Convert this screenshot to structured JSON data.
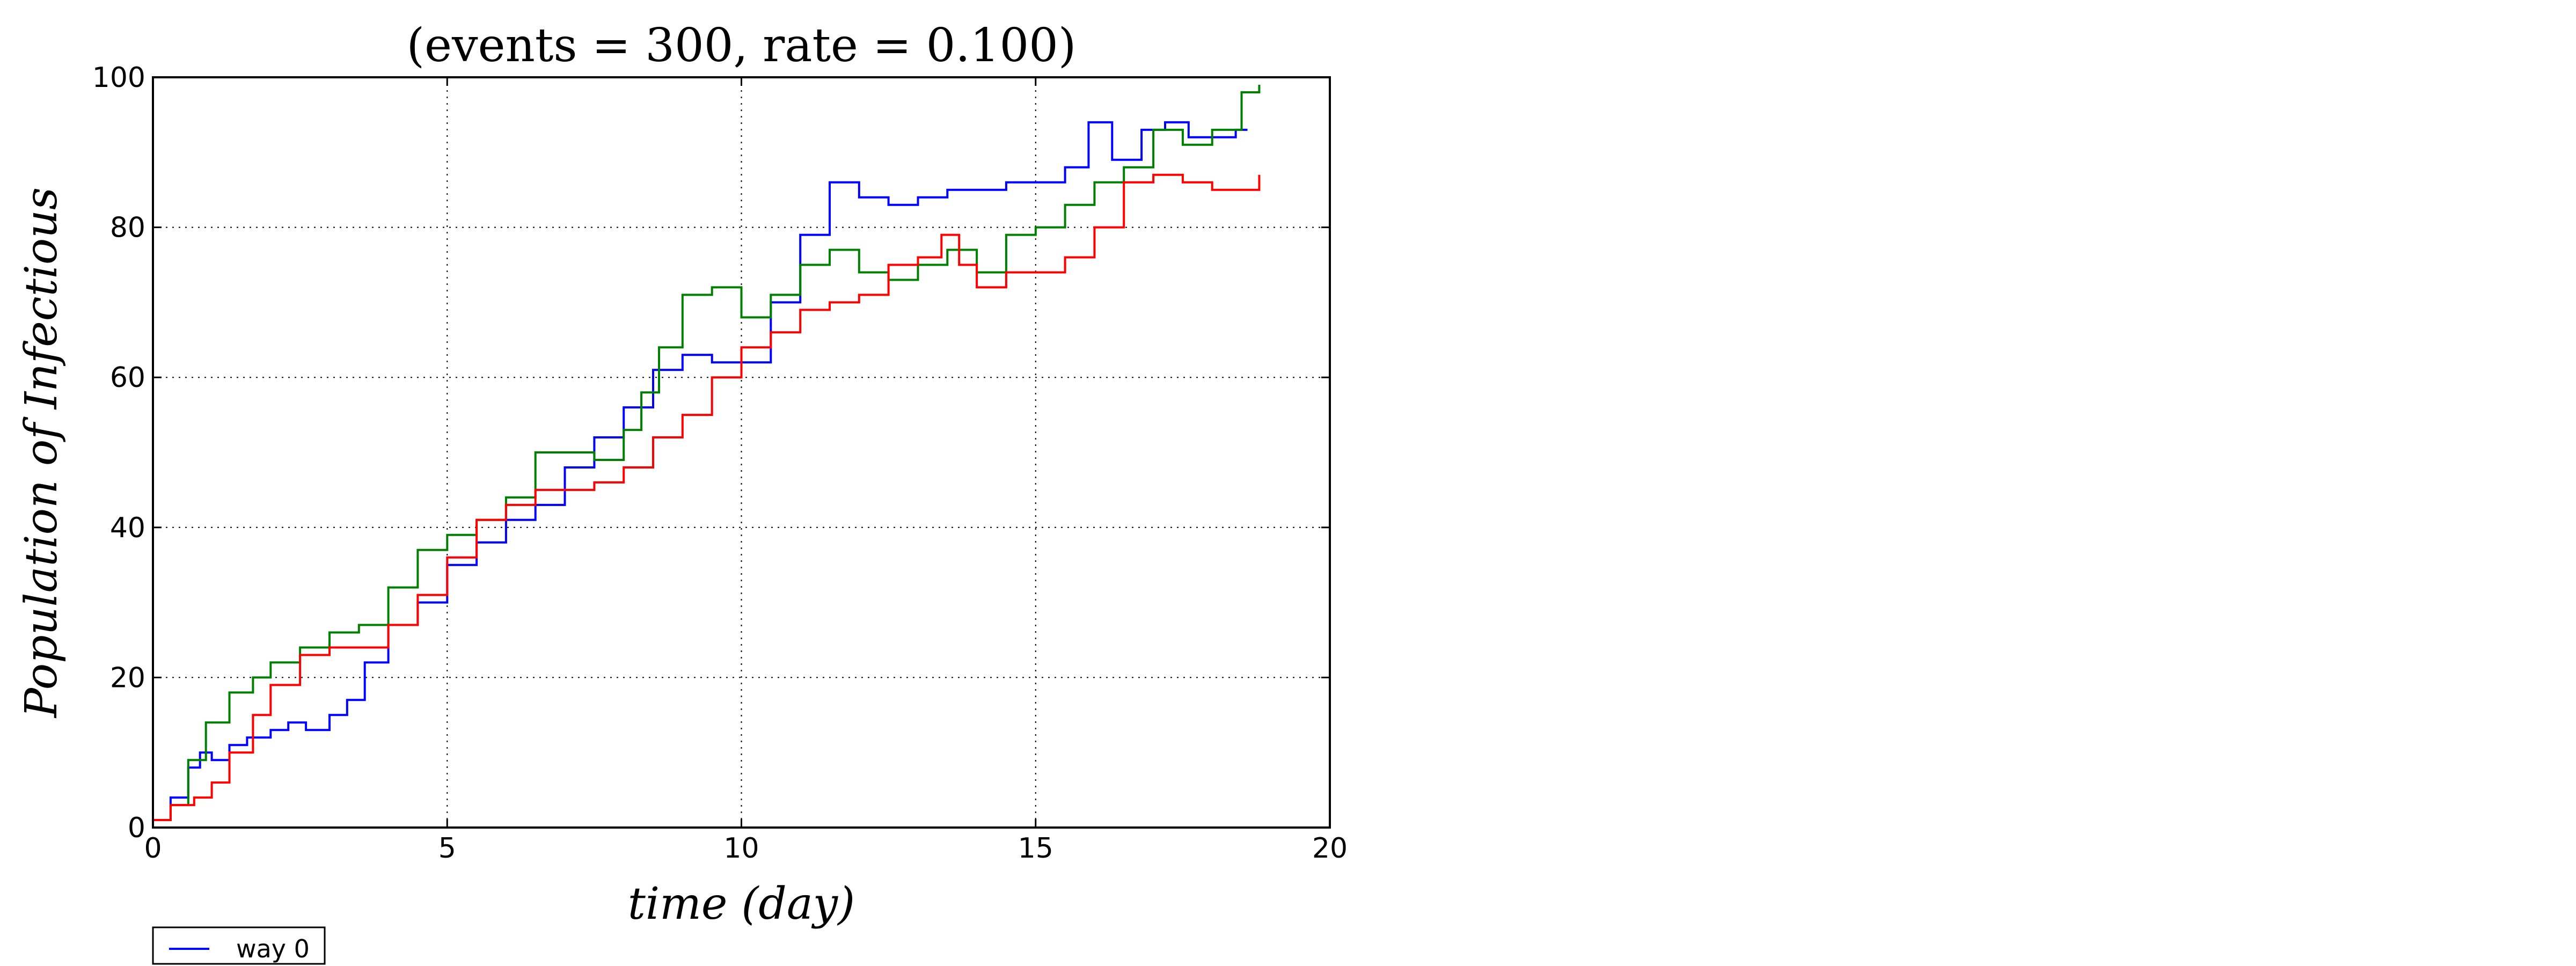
{
  "chart_data": {
    "type": "line",
    "title": "(events = 300, rate = 0.100)",
    "xlabel": "time (day)",
    "ylabel": "Population of Infectious",
    "xlim": [
      0,
      20
    ],
    "ylim": [
      0,
      100
    ],
    "xticks": [
      "0",
      "5",
      "10",
      "15",
      "20"
    ],
    "yticks": [
      "0",
      "20",
      "40",
      "60",
      "80",
      "100"
    ],
    "grid": true,
    "legend_position": "below-left",
    "legend_entries": [
      "way 0"
    ],
    "series": [
      {
        "name": "way 0",
        "color": "#0000ff",
        "points": [
          [
            0,
            1
          ],
          [
            0.3,
            4
          ],
          [
            0.6,
            8
          ],
          [
            0.8,
            10
          ],
          [
            1.0,
            9
          ],
          [
            1.3,
            11
          ],
          [
            1.6,
            12
          ],
          [
            2.0,
            13
          ],
          [
            2.3,
            14
          ],
          [
            2.6,
            13
          ],
          [
            3.0,
            15
          ],
          [
            3.3,
            17
          ],
          [
            3.6,
            22
          ],
          [
            4.0,
            27
          ],
          [
            4.5,
            30
          ],
          [
            5.0,
            35
          ],
          [
            5.5,
            38
          ],
          [
            6.0,
            41
          ],
          [
            6.5,
            43
          ],
          [
            7.0,
            48
          ],
          [
            7.5,
            52
          ],
          [
            8.0,
            56
          ],
          [
            8.5,
            61
          ],
          [
            9.0,
            63
          ],
          [
            9.5,
            62
          ],
          [
            10.0,
            62
          ],
          [
            10.5,
            70
          ],
          [
            11.0,
            79
          ],
          [
            11.5,
            86
          ],
          [
            12.0,
            84
          ],
          [
            12.5,
            83
          ],
          [
            13.0,
            84
          ],
          [
            13.5,
            85
          ],
          [
            14.0,
            85
          ],
          [
            14.5,
            86
          ],
          [
            15.0,
            86
          ],
          [
            15.5,
            88
          ],
          [
            15.9,
            94
          ],
          [
            16.3,
            89
          ],
          [
            16.8,
            93
          ],
          [
            17.2,
            94
          ],
          [
            17.6,
            92
          ],
          [
            18.0,
            92
          ],
          [
            18.4,
            93
          ],
          [
            18.6,
            93
          ]
        ]
      },
      {
        "color": "#008000",
        "points": [
          [
            0,
            1
          ],
          [
            0.3,
            3
          ],
          [
            0.6,
            9
          ],
          [
            0.9,
            14
          ],
          [
            1.3,
            18
          ],
          [
            1.7,
            20
          ],
          [
            2.0,
            22
          ],
          [
            2.5,
            24
          ],
          [
            3.0,
            26
          ],
          [
            3.5,
            27
          ],
          [
            4.0,
            32
          ],
          [
            4.5,
            37
          ],
          [
            5.0,
            39
          ],
          [
            5.5,
            41
          ],
          [
            6.0,
            44
          ],
          [
            6.5,
            50
          ],
          [
            7.0,
            50
          ],
          [
            7.5,
            49
          ],
          [
            8.0,
            53
          ],
          [
            8.3,
            58
          ],
          [
            8.6,
            64
          ],
          [
            9.0,
            71
          ],
          [
            9.5,
            72
          ],
          [
            10.0,
            68
          ],
          [
            10.5,
            71
          ],
          [
            11.0,
            75
          ],
          [
            11.5,
            77
          ],
          [
            12.0,
            74
          ],
          [
            12.5,
            73
          ],
          [
            13.0,
            75
          ],
          [
            13.5,
            77
          ],
          [
            14.0,
            74
          ],
          [
            14.5,
            79
          ],
          [
            15.0,
            80
          ],
          [
            15.5,
            83
          ],
          [
            16.0,
            86
          ],
          [
            16.5,
            88
          ],
          [
            17.0,
            93
          ],
          [
            17.5,
            91
          ],
          [
            18.0,
            93
          ],
          [
            18.5,
            98
          ],
          [
            18.8,
            99
          ]
        ]
      },
      {
        "color": "#ff0000",
        "points": [
          [
            0,
            1
          ],
          [
            0.3,
            3
          ],
          [
            0.7,
            4
          ],
          [
            1.0,
            6
          ],
          [
            1.3,
            10
          ],
          [
            1.7,
            15
          ],
          [
            2.0,
            19
          ],
          [
            2.5,
            23
          ],
          [
            3.0,
            24
          ],
          [
            3.5,
            24
          ],
          [
            4.0,
            27
          ],
          [
            4.5,
            31
          ],
          [
            5.0,
            36
          ],
          [
            5.5,
            41
          ],
          [
            6.0,
            43
          ],
          [
            6.5,
            45
          ],
          [
            7.0,
            45
          ],
          [
            7.5,
            46
          ],
          [
            8.0,
            48
          ],
          [
            8.5,
            52
          ],
          [
            9.0,
            55
          ],
          [
            9.5,
            60
          ],
          [
            10.0,
            64
          ],
          [
            10.5,
            66
          ],
          [
            11.0,
            69
          ],
          [
            11.5,
            70
          ],
          [
            12.0,
            71
          ],
          [
            12.5,
            75
          ],
          [
            13.0,
            76
          ],
          [
            13.4,
            79
          ],
          [
            13.7,
            75
          ],
          [
            14.0,
            72
          ],
          [
            14.5,
            74
          ],
          [
            15.0,
            74
          ],
          [
            15.5,
            76
          ],
          [
            16.0,
            80
          ],
          [
            16.5,
            86
          ],
          [
            17.0,
            87
          ],
          [
            17.5,
            86
          ],
          [
            18.0,
            85
          ],
          [
            18.5,
            85
          ],
          [
            18.8,
            87
          ]
        ]
      }
    ]
  }
}
